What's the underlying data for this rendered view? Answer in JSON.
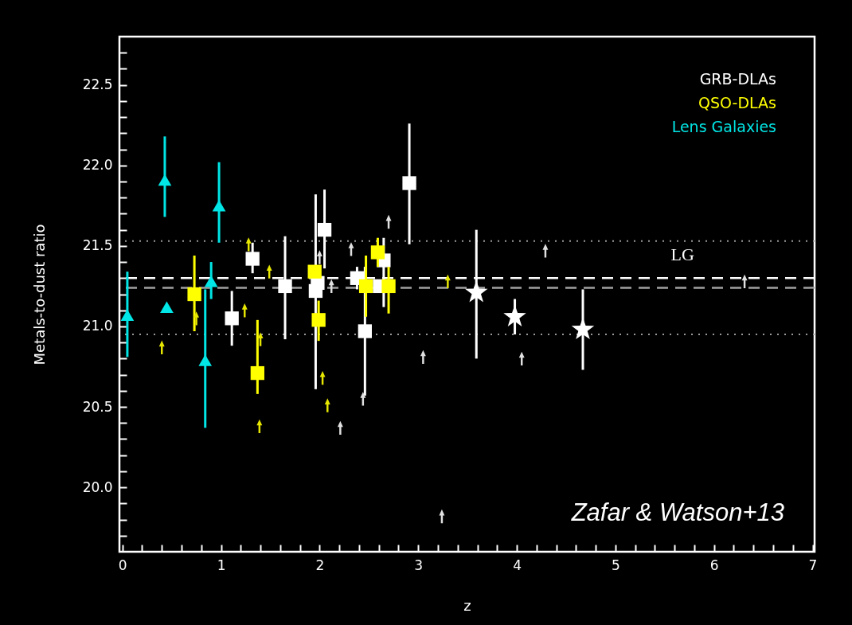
{
  "chart_data": {
    "type": "scatter",
    "xlabel": "z",
    "ylabel": "Metals-to-dust ratio",
    "xlim": [
      -0.03,
      7.02
    ],
    "ylim": [
      19.6,
      22.8
    ],
    "xticks": [
      0,
      {
        "value": 0.2,
        "label": null
      },
      {
        "value": 0.4,
        "label": null
      },
      {
        "value": 0.6,
        "label": null
      },
      {
        "value": 0.8,
        "label": null
      },
      1,
      {
        "value": 1.2,
        "label": null
      },
      {
        "value": 1.4,
        "label": null
      },
      {
        "value": 1.6,
        "label": null
      },
      {
        "value": 1.8,
        "label": null
      },
      2,
      {
        "value": 2.2,
        "label": null
      },
      {
        "value": 2.4,
        "label": null
      },
      {
        "value": 2.6,
        "label": null
      },
      {
        "value": 2.8,
        "label": null
      },
      3,
      {
        "value": 3.2,
        "label": null
      },
      {
        "value": 3.4,
        "label": null
      },
      {
        "value": 3.6,
        "label": null
      },
      {
        "value": 3.8,
        "label": null
      },
      4,
      {
        "value": 4.2,
        "label": null
      },
      {
        "value": 4.4,
        "label": null
      },
      {
        "value": 4.6,
        "label": null
      },
      {
        "value": 4.8,
        "label": null
      },
      5,
      {
        "value": 5.2,
        "label": null
      },
      {
        "value": 5.4,
        "label": null
      },
      {
        "value": 5.6,
        "label": null
      },
      {
        "value": 5.8,
        "label": null
      },
      6,
      {
        "value": 6.2,
        "label": null
      },
      {
        "value": 6.4,
        "label": null
      },
      {
        "value": 6.6,
        "label": null
      },
      {
        "value": 6.8,
        "label": null
      },
      7
    ],
    "yticks": [
      {
        "value": 19.7,
        "label": null
      },
      {
        "value": 19.8,
        "label": null
      },
      {
        "value": 19.9,
        "label": null
      },
      {
        "value": 20,
        "label": "20.0"
      },
      {
        "value": 20.1,
        "label": null
      },
      {
        "value": 20.2,
        "label": null
      },
      {
        "value": 20.3,
        "label": null
      },
      {
        "value": 20.4,
        "label": null
      },
      20.5,
      {
        "value": 20.6,
        "label": null
      },
      {
        "value": 20.7,
        "label": null
      },
      {
        "value": 20.8,
        "label": null
      },
      {
        "value": 20.9,
        "label": null
      },
      {
        "value": 21,
        "label": "21.0"
      },
      {
        "value": 21.1,
        "label": null
      },
      {
        "value": 21.2,
        "label": null
      },
      {
        "value": 21.3,
        "label": null
      },
      {
        "value": 21.4,
        "label": null
      },
      21.5,
      {
        "value": 21.6,
        "label": null
      },
      {
        "value": 21.7,
        "label": null
      },
      {
        "value": 21.8,
        "label": null
      },
      {
        "value": 21.9,
        "label": null
      },
      {
        "value": 22,
        "label": "22.0"
      },
      {
        "value": 22.1,
        "label": null
      },
      {
        "value": 22.2,
        "label": null
      },
      {
        "value": 22.3,
        "label": null
      },
      {
        "value": 22.4,
        "label": null
      },
      22.5,
      {
        "value": 22.6,
        "label": null
      },
      {
        "value": 22.7,
        "label": null
      }
    ],
    "ref_lines": [
      {
        "axis": "y",
        "value": 21.53,
        "label": "LG",
        "color": "#9a9a9a",
        "line_style": "dotted"
      },
      {
        "axis": "y",
        "value": 20.95,
        "color": "#9a9a9a",
        "line_style": "dotted"
      },
      {
        "axis": "y",
        "value": 21.3,
        "color": "#ffffff",
        "line_style": "dashed"
      },
      {
        "axis": "y",
        "value": 21.24,
        "color": "#a0a0a0",
        "line_style": "dashed"
      }
    ],
    "annotations": [
      "Zafar & Watson+13"
    ],
    "series": [
      {
        "name": "GRB-DLAs",
        "marker": "square",
        "color": "#ffffff",
        "x": [
          1.11,
          1.32,
          1.65,
          1.96,
          1.98,
          2.05,
          2.38,
          2.46,
          2.65,
          2.61,
          2.91
        ],
        "values": [
          21.05,
          21.42,
          21.25,
          21.22,
          21.27,
          21.6,
          21.3,
          20.97,
          21.41,
          21.25,
          21.89
        ],
        "errors": [
          [
            20.88,
            21.22
          ],
          [
            21.33,
            21.52
          ],
          [
            20.92,
            21.56
          ],
          [
            20.61,
            21.82
          ],
          null,
          [
            21.36,
            21.85
          ],
          [
            21.23,
            21.37
          ],
          [
            20.57,
            21.37
          ],
          [
            21.12,
            21.55
          ],
          null,
          [
            21.51,
            22.26
          ]
        ]
      },
      {
        "name": "QSO-DLAs",
        "marker": "square",
        "color": "#ffff00",
        "x": [
          0.73,
          1.37,
          1.95,
          1.99,
          2.47,
          2.59,
          2.7
        ],
        "values": [
          21.2,
          20.71,
          21.34,
          21.04,
          21.25,
          21.46,
          21.25
        ],
        "errors": [
          [
            20.97,
            21.44
          ],
          [
            20.58,
            21.04
          ],
          null,
          [
            20.91,
            21.16
          ],
          [
            21.06,
            21.44
          ],
          [
            21.37,
            21.55
          ],
          [
            21.08,
            21.37
          ]
        ]
      },
      {
        "name": "Lens Galaxies",
        "marker": "triangle",
        "color": "#00e5e5",
        "x": [
          0.05,
          0.45,
          0.84,
          0.9,
          0.43,
          0.98
        ],
        "values": [
          21.07,
          21.12,
          20.79,
          21.28,
          21.91,
          21.75
        ],
        "errors": [
          [
            20.81,
            21.34
          ],
          null,
          [
            20.37,
            21.23
          ],
          [
            21.17,
            21.4
          ],
          [
            21.68,
            22.18
          ],
          [
            21.52,
            22.02
          ]
        ]
      },
      {
        "marker": "star",
        "color": "#ffffff",
        "x": [
          3.59,
          3.98,
          4.67
        ],
        "values": [
          21.21,
          21.06,
          20.98
        ],
        "errors": [
          [
            20.8,
            21.6
          ],
          [
            20.95,
            21.17
          ],
          [
            20.73,
            21.23
          ]
        ]
      },
      {
        "color": "#e0e0e0",
        "x": [
          2.21,
          2.44,
          3.05,
          2.7,
          2.32,
          2.12,
          2.0,
          4.29,
          4.05,
          6.31,
          3.24
        ],
        "values": [
          20.37,
          20.55,
          20.81,
          21.65,
          21.48,
          21.25,
          21.43,
          21.47,
          20.8,
          21.28,
          19.82
        ]
      },
      {
        "color": "#e6e600",
        "x": [
          0.4,
          0.75,
          1.24,
          1.39,
          1.4,
          1.49,
          1.28,
          2.03,
          2.08,
          3.3
        ],
        "values": [
          20.87,
          21.05,
          21.1,
          20.38,
          20.92,
          21.34,
          21.51,
          20.68,
          20.51,
          21.28
        ]
      }
    ]
  }
}
